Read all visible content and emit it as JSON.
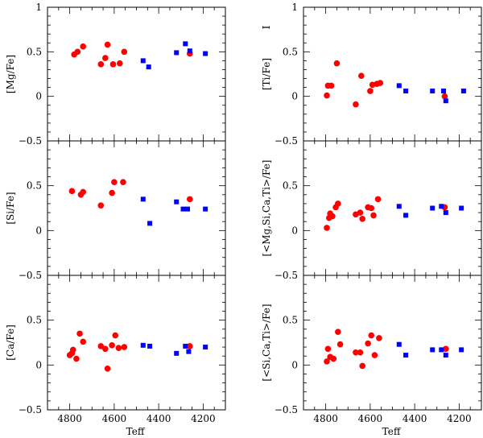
{
  "chart_data": {
    "type": "scatter",
    "layout": "3 rows x 2 columns, shared x axis per column",
    "xlabel": "Teff",
    "xlim": [
      4900,
      4100
    ],
    "x_ticks": [
      4800,
      4600,
      4400,
      4200
    ],
    "x_tick_labels": [
      "4800",
      "4600",
      "4400",
      "4200"
    ],
    "ylim": [
      -0.5,
      1
    ],
    "series_styles": [
      {
        "name": "red",
        "color": "#ff0000",
        "marker": "circle"
      },
      {
        "name": "blue",
        "color": "#0000ff",
        "marker": "square"
      }
    ],
    "panels": [
      {
        "id": "mg",
        "ylabel": "[Mg/Fe]",
        "ylabel_suffix": "",
        "y_tick_labels": [
          "1",
          "0.5",
          "0",
          "−0.5"
        ],
        "series": [
          {
            "name": "red",
            "points": [
              [
                4780,
                0.47
              ],
              [
                4765,
                0.5
              ],
              [
                4740,
                0.56
              ],
              [
                4660,
                0.36
              ],
              [
                4640,
                0.43
              ],
              [
                4630,
                0.58
              ],
              [
                4605,
                0.36
              ],
              [
                4575,
                0.37
              ],
              [
                4555,
                0.5
              ],
              [
                4260,
                0.48
              ]
            ]
          },
          {
            "name": "blue",
            "points": [
              [
                4470,
                0.4
              ],
              [
                4445,
                0.33
              ],
              [
                4320,
                0.49
              ],
              [
                4280,
                0.59
              ],
              [
                4260,
                0.51
              ],
              [
                4190,
                0.48
              ]
            ]
          }
        ]
      },
      {
        "id": "ti",
        "ylabel": "[Ti/Fe]",
        "ylabel_suffix": "I",
        "y_tick_labels": [
          "1",
          "0.5",
          "0",
          "−0.5"
        ],
        "series": [
          {
            "name": "red",
            "points": [
              [
                4795,
                0.01
              ],
              [
                4790,
                0.12
              ],
              [
                4775,
                0.12
              ],
              [
                4750,
                0.37
              ],
              [
                4665,
                -0.09
              ],
              [
                4640,
                0.23
              ],
              [
                4600,
                0.06
              ],
              [
                4590,
                0.13
              ],
              [
                4570,
                0.14
              ],
              [
                4555,
                0.15
              ],
              [
                4265,
                0.0
              ]
            ]
          },
          {
            "name": "blue",
            "points": [
              [
                4470,
                0.12
              ],
              [
                4440,
                0.06
              ],
              [
                4320,
                0.06
              ],
              [
                4270,
                0.06
              ],
              [
                4260,
                -0.05
              ],
              [
                4180,
                0.06
              ]
            ]
          }
        ]
      },
      {
        "id": "si",
        "ylabel": "[Si/Fe]",
        "ylabel_suffix": "",
        "y_tick_labels": [
          "",
          "0.5",
          "0",
          "−0.5"
        ],
        "series": [
          {
            "name": "red",
            "points": [
              [
                4790,
                0.44
              ],
              [
                4750,
                0.4
              ],
              [
                4740,
                0.43
              ],
              [
                4660,
                0.28
              ],
              [
                4610,
                0.42
              ],
              [
                4600,
                0.54
              ],
              [
                4560,
                0.54
              ],
              [
                4260,
                0.35
              ]
            ]
          },
          {
            "name": "blue",
            "points": [
              [
                4470,
                0.35
              ],
              [
                4440,
                0.08
              ],
              [
                4320,
                0.32
              ],
              [
                4290,
                0.24
              ],
              [
                4270,
                0.24
              ],
              [
                4190,
                0.24
              ]
            ]
          }
        ]
      },
      {
        "id": "mgsicati",
        "ylabel": "[<Mg,Si,Ca,Ti>/Fe]",
        "ylabel_suffix": "",
        "y_tick_labels": [
          "",
          "0.5",
          "0",
          "−0.5"
        ],
        "series": [
          {
            "name": "red",
            "points": [
              [
                4795,
                0.03
              ],
              [
                4785,
                0.14
              ],
              [
                4780,
                0.19
              ],
              [
                4770,
                0.16
              ],
              [
                4755,
                0.26
              ],
              [
                4745,
                0.3
              ],
              [
                4665,
                0.18
              ],
              [
                4645,
                0.2
              ],
              [
                4635,
                0.13
              ],
              [
                4610,
                0.26
              ],
              [
                4595,
                0.25
              ],
              [
                4585,
                0.17
              ],
              [
                4565,
                0.35
              ],
              [
                4265,
                0.26
              ]
            ]
          },
          {
            "name": "blue",
            "points": [
              [
                4470,
                0.27
              ],
              [
                4440,
                0.17
              ],
              [
                4320,
                0.25
              ],
              [
                4280,
                0.27
              ],
              [
                4260,
                0.2
              ],
              [
                4190,
                0.25
              ]
            ]
          }
        ]
      },
      {
        "id": "ca",
        "ylabel": "[Ca/Fe]",
        "ylabel_suffix": "",
        "y_tick_labels": [
          "",
          "0.5",
          "0",
          "−0.5"
        ],
        "series": [
          {
            "name": "red",
            "points": [
              [
                4800,
                0.11
              ],
              [
                4790,
                0.13
              ],
              [
                4785,
                0.17
              ],
              [
                4770,
                0.07
              ],
              [
                4755,
                0.35
              ],
              [
                4740,
                0.26
              ],
              [
                4660,
                0.21
              ],
              [
                4640,
                0.18
              ],
              [
                4630,
                -0.04
              ],
              [
                4610,
                0.22
              ],
              [
                4595,
                0.33
              ],
              [
                4580,
                0.19
              ],
              [
                4555,
                0.2
              ],
              [
                4260,
                0.21
              ]
            ]
          },
          {
            "name": "blue",
            "points": [
              [
                4470,
                0.22
              ],
              [
                4440,
                0.21
              ],
              [
                4320,
                0.13
              ],
              [
                4280,
                0.21
              ],
              [
                4265,
                0.15
              ],
              [
                4190,
                0.2
              ]
            ]
          }
        ]
      },
      {
        "id": "sicati",
        "ylabel": "[<Si,Ca,Ti>/Fe]",
        "ylabel_suffix": "",
        "y_tick_labels": [
          "",
          "0.5",
          "0",
          "−0.5"
        ],
        "series": [
          {
            "name": "red",
            "points": [
              [
                4795,
                0.04
              ],
              [
                4790,
                0.18
              ],
              [
                4780,
                0.09
              ],
              [
                4765,
                0.07
              ],
              [
                4745,
                0.37
              ],
              [
                4735,
                0.23
              ],
              [
                4665,
                0.14
              ],
              [
                4645,
                0.14
              ],
              [
                4635,
                -0.01
              ],
              [
                4610,
                0.24
              ],
              [
                4595,
                0.33
              ],
              [
                4580,
                0.11
              ],
              [
                4560,
                0.3
              ],
              [
                4260,
                0.18
              ]
            ]
          },
          {
            "name": "blue",
            "points": [
              [
                4470,
                0.23
              ],
              [
                4440,
                0.11
              ],
              [
                4320,
                0.17
              ],
              [
                4280,
                0.17
              ],
              [
                4260,
                0.11
              ],
              [
                4190,
                0.17
              ]
            ]
          }
        ]
      }
    ]
  }
}
